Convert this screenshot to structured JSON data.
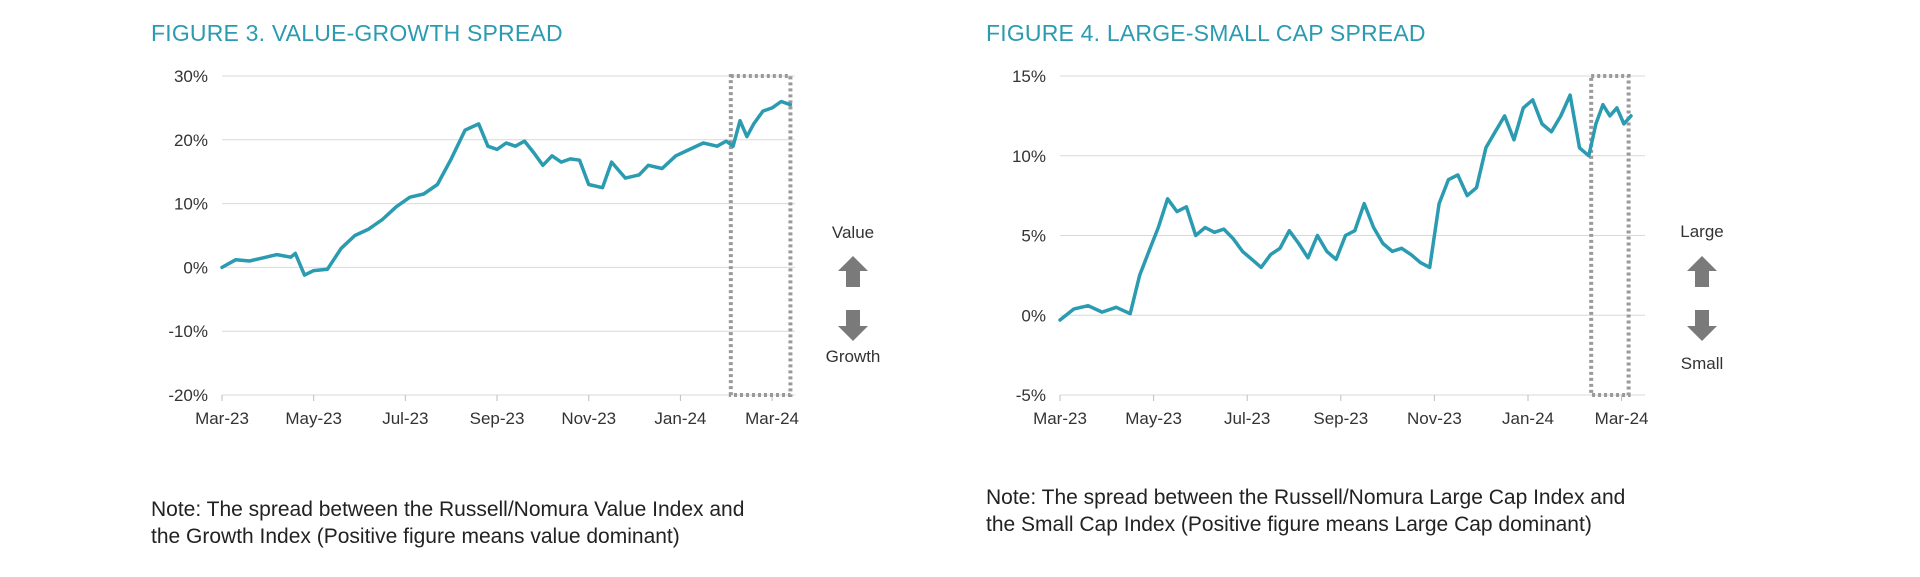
{
  "charts": [
    {
      "title": "FIGURE 3. VALUE-GROWTH SPREAD",
      "note_line1": "Note: The spread between the Russell/Nomura Value Index and",
      "note_line2": "the Growth Index (Positive figure means value dominant)",
      "up_label": "Value",
      "down_label": "Growth",
      "line_color": "#2a9bb0",
      "highlight_color": "#9a9a9a",
      "arrow_color": "#7a7a7a"
    },
    {
      "title": "FIGURE 4. LARGE-SMALL CAP SPREAD",
      "note_line1": "Note: The spread between the Russell/Nomura Large Cap Index and",
      "note_line2": "the Small Cap Index (Positive figure means Large Cap dominant)",
      "up_label": "Large",
      "down_label": "Small",
      "line_color": "#2a9bb0",
      "highlight_color": "#9a9a9a",
      "arrow_color": "#7a7a7a"
    }
  ],
  "chart_data": [
    {
      "type": "line",
      "title": "FIGURE 3. VALUE-GROWTH SPREAD",
      "xlabel": "",
      "ylabel": "",
      "x_range": [
        0,
        12.5
      ],
      "ylim": [
        -20,
        30
      ],
      "yticks": [
        30,
        20,
        10,
        0,
        -10,
        -20
      ],
      "ytick_labels": [
        "30%",
        "20%",
        "10%",
        "0%",
        "-10%",
        "-20%"
      ],
      "xticks": [
        0,
        2,
        4,
        6,
        8,
        10,
        12
      ],
      "xtick_labels": [
        "Mar-23",
        "May-23",
        "Jul-23",
        "Sep-23",
        "Nov-23",
        "Jan-24",
        "Mar-24"
      ],
      "grid": true,
      "highlight_range": [
        11.1,
        12.4
      ],
      "series": [
        {
          "name": "Value-Growth Spread",
          "x": [
            0,
            0.3,
            0.6,
            0.9,
            1.2,
            1.5,
            1.6,
            1.8,
            2.0,
            2.3,
            2.6,
            2.9,
            3.2,
            3.5,
            3.8,
            4.1,
            4.4,
            4.7,
            5.0,
            5.3,
            5.6,
            5.8,
            6.0,
            6.2,
            6.4,
            6.6,
            6.8,
            7.0,
            7.2,
            7.4,
            7.6,
            7.8,
            8.0,
            8.3,
            8.5,
            8.8,
            9.1,
            9.3,
            9.6,
            9.9,
            10.2,
            10.5,
            10.8,
            11.0,
            11.15,
            11.3,
            11.45,
            11.6,
            11.8,
            12.0,
            12.2,
            12.4
          ],
          "values": [
            0,
            1.2,
            1.0,
            1.5,
            2.0,
            1.6,
            2.2,
            -1.2,
            -0.5,
            -0.3,
            3.0,
            5.0,
            6.0,
            7.5,
            9.5,
            11.0,
            11.5,
            13.0,
            17.0,
            21.5,
            22.5,
            19.0,
            18.5,
            19.5,
            19.0,
            19.8,
            18.0,
            16.0,
            17.5,
            16.5,
            17.0,
            16.8,
            13.0,
            12.5,
            16.5,
            14.0,
            14.5,
            16.0,
            15.5,
            17.5,
            18.5,
            19.5,
            19.0,
            19.8,
            19.0,
            23.0,
            20.5,
            22.5,
            24.5,
            25.0,
            26.0,
            25.5
          ]
        }
      ]
    },
    {
      "type": "line",
      "title": "FIGURE 4. LARGE-SMALL CAP SPREAD",
      "xlabel": "",
      "ylabel": "",
      "x_range": [
        0,
        12.5
      ],
      "ylim": [
        -5,
        15
      ],
      "yticks": [
        15,
        10,
        5,
        0,
        -5
      ],
      "ytick_labels": [
        "15%",
        "10%",
        "5%",
        "0%",
        "-5%"
      ],
      "xticks": [
        0,
        2,
        4,
        6,
        8,
        10,
        12
      ],
      "xtick_labels": [
        "Mar-23",
        "May-23",
        "Jul-23",
        "Sep-23",
        "Nov-23",
        "Jan-24",
        "Mar-24"
      ],
      "grid": true,
      "highlight_range": [
        11.35,
        12.15
      ],
      "series": [
        {
          "name": "Large-Small Cap Spread",
          "x": [
            0,
            0.3,
            0.6,
            0.9,
            1.2,
            1.5,
            1.7,
            1.9,
            2.1,
            2.3,
            2.5,
            2.7,
            2.9,
            3.1,
            3.3,
            3.5,
            3.7,
            3.9,
            4.1,
            4.3,
            4.5,
            4.7,
            4.9,
            5.1,
            5.3,
            5.5,
            5.7,
            5.9,
            6.1,
            6.3,
            6.5,
            6.7,
            6.9,
            7.1,
            7.3,
            7.5,
            7.7,
            7.9,
            8.1,
            8.3,
            8.5,
            8.7,
            8.9,
            9.1,
            9.3,
            9.5,
            9.7,
            9.9,
            10.1,
            10.3,
            10.5,
            10.7,
            10.9,
            11.1,
            11.3,
            11.45,
            11.6,
            11.75,
            11.9,
            12.05,
            12.2
          ],
          "values": [
            -0.3,
            0.4,
            0.6,
            0.2,
            0.5,
            0.1,
            2.5,
            4.0,
            5.5,
            7.3,
            6.5,
            6.8,
            5.0,
            5.5,
            5.2,
            5.4,
            4.8,
            4.0,
            3.5,
            3.0,
            3.8,
            4.2,
            5.3,
            4.5,
            3.6,
            5.0,
            4.0,
            3.5,
            5.0,
            5.3,
            7.0,
            5.5,
            4.5,
            4.0,
            4.2,
            3.8,
            3.3,
            3.0,
            7.0,
            8.5,
            8.8,
            7.5,
            8.0,
            10.5,
            11.5,
            12.5,
            11.0,
            13.0,
            13.5,
            12.0,
            11.5,
            12.5,
            13.8,
            10.5,
            10.0,
            12.0,
            13.2,
            12.5,
            13.0,
            12.0,
            12.5
          ]
        }
      ]
    }
  ]
}
